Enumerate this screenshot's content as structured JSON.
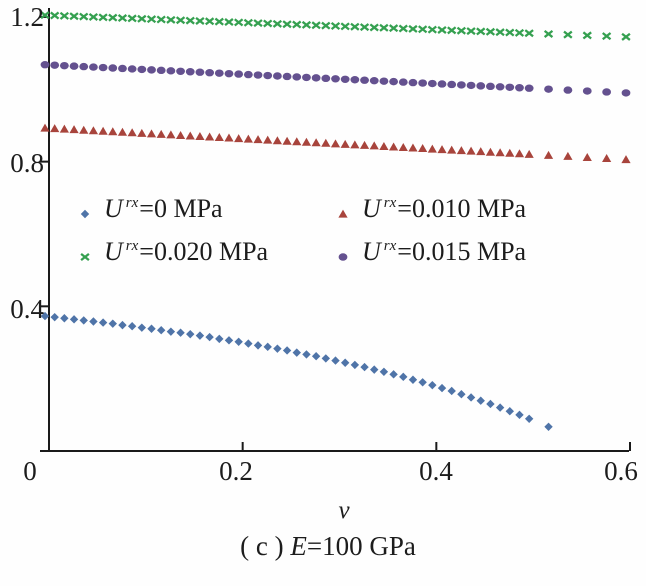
{
  "figure": {
    "x_axis_title": "v",
    "caption": {
      "prefix": "( c ) ",
      "e_symbol": "E",
      "rest": "=100 GPa"
    }
  },
  "legend": {
    "items": [
      {
        "marker": "diamond",
        "color": "#4f74a8",
        "u": "U",
        "sup": "rx",
        "rest": "=0 MPa"
      },
      {
        "marker": "triangle",
        "color": "#a8443c",
        "u": "U",
        "sup": "rx",
        "rest": "=0.010 MPa"
      },
      {
        "marker": "x",
        "color": "#35a050",
        "u": "U",
        "sup": "rx",
        "rest": "=0.020 MPa"
      },
      {
        "marker": "circle",
        "color": "#64518f",
        "u": "U",
        "sup": "rx",
        "rest": "=0.015 MPa"
      }
    ]
  },
  "chart_data": {
    "type": "scatter",
    "title": "",
    "xlabel": "v",
    "ylabel": "",
    "xlim": [
      0,
      0.6
    ],
    "ylim": [
      0,
      1.25
    ],
    "grid": false,
    "legend_position": "inside-upper-left",
    "caption": "( c ) E=100 GPa",
    "axis_color": "#1a1a1a",
    "axis": {
      "x_ticks": [
        {
          "v": 0,
          "label": "0"
        },
        {
          "v": 0.2,
          "label": "0.2"
        },
        {
          "v": 0.4,
          "label": "0.4"
        },
        {
          "v": 0.6,
          "label": "0.6"
        }
      ],
      "y_ticks": [
        {
          "v": 0.4,
          "label": "0.4"
        },
        {
          "v": 0.8,
          "label": "0.8"
        },
        {
          "v": 1.2,
          "label": "1.2"
        }
      ]
    },
    "series": [
      {
        "name": "U^rx=0 MPa",
        "marker": "diamond",
        "color": "#4f74a8",
        "x": [
          0,
          0.01,
          0.02,
          0.03,
          0.04,
          0.05,
          0.06,
          0.07,
          0.08,
          0.09,
          0.1,
          0.11,
          0.12,
          0.13,
          0.14,
          0.15,
          0.16,
          0.17,
          0.18,
          0.19,
          0.2,
          0.21,
          0.22,
          0.23,
          0.24,
          0.25,
          0.26,
          0.27,
          0.28,
          0.29,
          0.3,
          0.31,
          0.32,
          0.33,
          0.34,
          0.35,
          0.36,
          0.37,
          0.38,
          0.39,
          0.4,
          0.41,
          0.42,
          0.43,
          0.44,
          0.45,
          0.46,
          0.47,
          0.48,
          0.49,
          0.5,
          0.52
        ],
        "y": [
          0.373,
          0.37,
          0.367,
          0.364,
          0.361,
          0.358,
          0.355,
          0.352,
          0.348,
          0.345,
          0.341,
          0.338,
          0.334,
          0.33,
          0.327,
          0.323,
          0.319,
          0.315,
          0.31,
          0.306,
          0.302,
          0.297,
          0.292,
          0.288,
          0.283,
          0.278,
          0.272,
          0.267,
          0.262,
          0.256,
          0.25,
          0.244,
          0.238,
          0.232,
          0.225,
          0.219,
          0.212,
          0.205,
          0.197,
          0.19,
          0.182,
          0.174,
          0.166,
          0.157,
          0.148,
          0.139,
          0.13,
          0.12,
          0.11,
          0.1,
          0.089,
          0.067
        ]
      },
      {
        "name": "U^rx=0.010 MPa",
        "marker": "triangle",
        "color": "#a8443c",
        "x": [
          0,
          0.01,
          0.02,
          0.03,
          0.04,
          0.05,
          0.06,
          0.07,
          0.08,
          0.09,
          0.1,
          0.11,
          0.12,
          0.13,
          0.14,
          0.15,
          0.16,
          0.17,
          0.18,
          0.19,
          0.2,
          0.21,
          0.22,
          0.23,
          0.24,
          0.25,
          0.26,
          0.27,
          0.28,
          0.29,
          0.3,
          0.31,
          0.32,
          0.33,
          0.34,
          0.35,
          0.36,
          0.37,
          0.38,
          0.39,
          0.4,
          0.41,
          0.42,
          0.43,
          0.44,
          0.45,
          0.46,
          0.47,
          0.48,
          0.49,
          0.5,
          0.52,
          0.54,
          0.56,
          0.58,
          0.6
        ],
        "y": [
          0.893,
          0.8916,
          0.8901,
          0.8887,
          0.8872,
          0.8858,
          0.8843,
          0.8829,
          0.8814,
          0.88,
          0.8785,
          0.8771,
          0.8756,
          0.8742,
          0.8727,
          0.8713,
          0.8698,
          0.8684,
          0.8669,
          0.8655,
          0.864,
          0.8626,
          0.8611,
          0.8597,
          0.8582,
          0.8568,
          0.8553,
          0.8539,
          0.8524,
          0.851,
          0.8495,
          0.8481,
          0.8466,
          0.8452,
          0.8437,
          0.8423,
          0.8408,
          0.8394,
          0.8379,
          0.8365,
          0.835,
          0.8336,
          0.8321,
          0.8307,
          0.8292,
          0.8278,
          0.8263,
          0.8249,
          0.8234,
          0.822,
          0.8205,
          0.8176,
          0.8147,
          0.8118,
          0.8089,
          0.806
        ]
      },
      {
        "name": "U^rx=0.020 MPa",
        "marker": "x",
        "color": "#35a050",
        "x": [
          0,
          0.01,
          0.02,
          0.03,
          0.04,
          0.05,
          0.06,
          0.07,
          0.08,
          0.09,
          0.1,
          0.11,
          0.12,
          0.13,
          0.14,
          0.15,
          0.16,
          0.17,
          0.18,
          0.19,
          0.2,
          0.21,
          0.22,
          0.23,
          0.24,
          0.25,
          0.26,
          0.27,
          0.28,
          0.29,
          0.3,
          0.31,
          0.32,
          0.33,
          0.34,
          0.35,
          0.36,
          0.37,
          0.38,
          0.39,
          0.4,
          0.41,
          0.42,
          0.43,
          0.44,
          0.45,
          0.46,
          0.47,
          0.48,
          0.49,
          0.5,
          0.52,
          0.54,
          0.56,
          0.58,
          0.6
        ],
        "y": [
          1.205,
          1.204,
          1.203,
          1.202,
          1.201,
          1.2,
          1.199,
          1.198,
          1.197,
          1.196,
          1.195,
          1.194,
          1.193,
          1.192,
          1.191,
          1.19,
          1.189,
          1.188,
          1.187,
          1.186,
          1.185,
          1.184,
          1.183,
          1.182,
          1.181,
          1.18,
          1.179,
          1.178,
          1.177,
          1.176,
          1.175,
          1.174,
          1.173,
          1.172,
          1.171,
          1.17,
          1.169,
          1.168,
          1.167,
          1.166,
          1.165,
          1.164,
          1.163,
          1.162,
          1.161,
          1.16,
          1.159,
          1.158,
          1.157,
          1.156,
          1.155,
          1.153,
          1.151,
          1.149,
          1.147,
          1.145
        ]
      },
      {
        "name": "U^rx=0.015 MPa",
        "marker": "circle",
        "color": "#64518f",
        "x": [
          0,
          0.01,
          0.02,
          0.03,
          0.04,
          0.05,
          0.06,
          0.07,
          0.08,
          0.09,
          0.1,
          0.11,
          0.12,
          0.13,
          0.14,
          0.15,
          0.16,
          0.17,
          0.18,
          0.19,
          0.2,
          0.21,
          0.22,
          0.23,
          0.24,
          0.25,
          0.26,
          0.27,
          0.28,
          0.29,
          0.3,
          0.31,
          0.32,
          0.33,
          0.34,
          0.35,
          0.36,
          0.37,
          0.38,
          0.39,
          0.4,
          0.41,
          0.42,
          0.43,
          0.44,
          0.45,
          0.46,
          0.47,
          0.48,
          0.49,
          0.5,
          0.52,
          0.54,
          0.56,
          0.58,
          0.6
        ],
        "y": [
          1.068,
          1.0667,
          1.0654,
          1.0641,
          1.0628,
          1.0615,
          1.0602,
          1.0589,
          1.0576,
          1.0563,
          1.055,
          1.0537,
          1.0524,
          1.0511,
          1.0498,
          1.0485,
          1.0472,
          1.0459,
          1.0446,
          1.0433,
          1.042,
          1.0407,
          1.0394,
          1.0381,
          1.0368,
          1.0355,
          1.0342,
          1.0329,
          1.0316,
          1.0303,
          1.029,
          1.0277,
          1.0264,
          1.0251,
          1.0238,
          1.0225,
          1.0212,
          1.0199,
          1.0186,
          1.0173,
          1.016,
          1.0147,
          1.0134,
          1.0121,
          1.0108,
          1.0095,
          1.0082,
          1.0069,
          1.0056,
          1.0043,
          1.003,
          1.0004,
          0.9978,
          0.9952,
          0.9926,
          0.99
        ]
      }
    ]
  }
}
